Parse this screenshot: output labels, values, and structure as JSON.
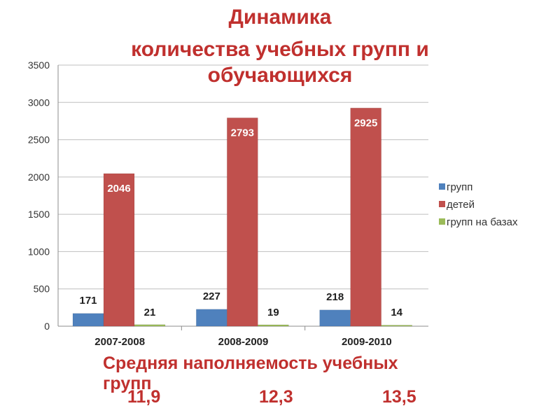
{
  "slide": {
    "title_lines": [
      "Динамика",
      "количества учебных групп и",
      "обучающихся"
    ],
    "summary_caption": "Средняя наполняемость учебных групп",
    "summary_values": [
      "11,9",
      "12,3",
      "13,5"
    ]
  },
  "colors": {
    "title": "#c0302e",
    "series": [
      "#4f81bd",
      "#c0504d",
      "#9bbb59"
    ]
  },
  "chart_data": {
    "type": "bar",
    "title": "Динамика количества учебных групп и обучающихся",
    "xlabel": "",
    "ylabel": "",
    "categories": [
      "2007-2008",
      "2008-2009",
      "2009-2010"
    ],
    "series": [
      {
        "name": "групп",
        "values": [
          171,
          227,
          218
        ]
      },
      {
        "name": "детей",
        "values": [
          2046,
          2793,
          2925
        ]
      },
      {
        "name": "групп на базах",
        "values": [
          21,
          19,
          14
        ]
      }
    ],
    "ylim": [
      0,
      3500
    ],
    "yticks": [
      0,
      500,
      1000,
      1500,
      2000,
      2500,
      3000,
      3500
    ],
    "grid": true,
    "legend": "right"
  }
}
